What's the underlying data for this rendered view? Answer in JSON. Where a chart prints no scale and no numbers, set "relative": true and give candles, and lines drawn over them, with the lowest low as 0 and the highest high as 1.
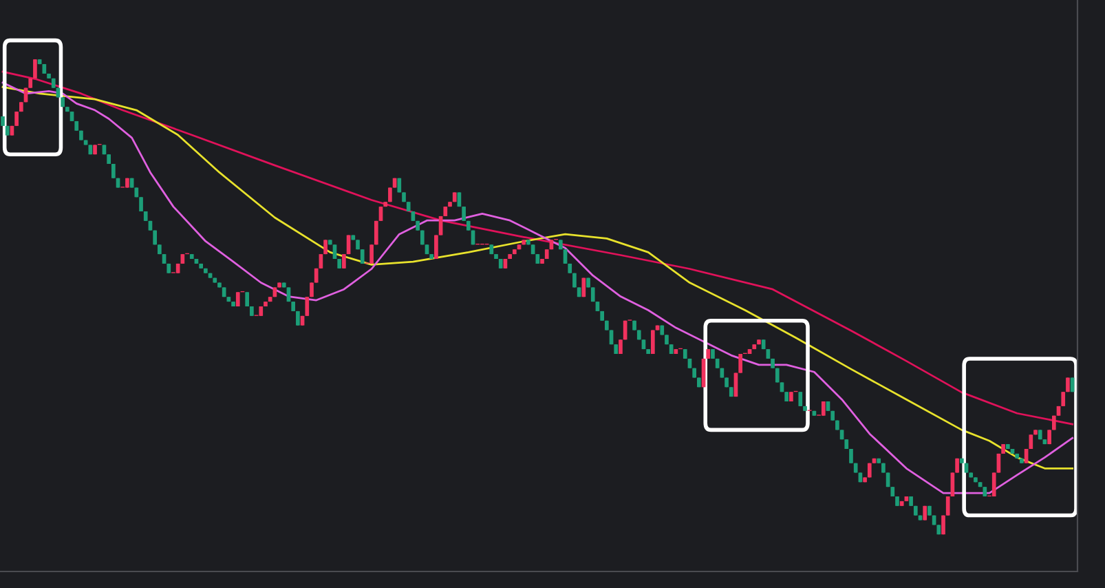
{
  "chart_data": {
    "type": "candlestick",
    "relative": true,
    "categories": [
      null,
      null,
      null,
      null,
      null,
      null,
      null,
      null,
      null,
      null,
      null,
      null,
      null,
      null,
      null,
      null,
      null,
      null,
      null,
      null,
      null,
      null,
      null,
      null,
      null,
      null,
      null,
      null,
      null,
      null,
      null,
      null,
      null,
      null,
      null,
      null,
      null,
      null,
      null,
      null,
      null,
      null,
      null,
      null,
      null,
      null,
      null,
      null,
      null,
      null,
      null,
      null,
      null,
      null,
      null,
      null,
      null,
      null,
      null,
      null,
      null,
      null,
      null,
      null,
      null,
      null,
      null,
      null,
      null,
      null,
      null,
      null,
      null,
      null,
      null,
      null,
      null,
      null,
      null,
      null,
      null,
      null,
      null,
      null,
      null,
      null,
      null,
      null,
      null,
      null,
      null,
      null,
      null,
      null,
      null,
      null,
      null,
      null,
      null,
      null,
      null,
      null,
      null,
      null,
      null,
      null,
      null,
      null,
      null,
      null,
      null,
      null,
      null,
      null,
      null,
      null,
      null,
      null,
      null,
      null,
      null,
      null,
      null,
      null,
      null,
      null,
      null,
      null,
      null,
      null,
      null,
      null,
      null,
      null,
      null,
      null,
      null,
      null,
      null,
      null,
      null,
      null,
      null,
      null,
      null,
      null,
      null,
      null,
      null,
      null,
      null,
      null,
      null,
      null,
      null,
      null,
      null,
      null,
      null,
      null,
      null,
      null,
      null,
      null,
      null,
      null,
      null,
      null,
      null,
      null,
      null,
      null,
      null,
      null,
      null,
      null,
      null,
      null,
      null,
      null,
      null,
      null,
      null,
      null,
      null,
      null,
      null,
      null,
      null,
      null,
      null,
      null,
      null,
      null,
      null,
      null,
      null,
      null,
      null,
      null,
      null,
      null,
      null,
      null,
      null,
      null,
      null,
      null,
      null,
      null,
      null,
      null,
      null,
      null,
      null,
      null,
      null,
      null,
      null,
      null,
      null,
      null,
      null,
      null,
      null,
      null,
      null,
      null,
      null,
      null,
      null,
      null,
      null
    ],
    "colors": [
      "#1c9e78",
      "#1c9e78",
      "#f0325e",
      "#f0325e",
      "#f0325e",
      "#f0325e",
      "#f0325e",
      "#f0325e",
      "#1c9e78",
      "#1c9e78",
      "#1c9e78",
      "#1c9e78",
      "#1c9e78",
      "#1c9e78",
      "#1c9e78",
      "#1c9e78",
      "#1c9e78",
      "#1c9e78",
      "#1c9e78",
      "#1c9e78",
      "#f0325e",
      "#f0325e",
      "#1c9e78",
      "#1c9e78",
      "#1c9e78",
      "#1c9e78",
      "#f0325e",
      "#f0325e",
      "#1c9e78",
      "#1c9e78",
      "#1c9e78",
      "#1c9e78",
      "#1c9e78",
      "#1c9e78",
      "#1c9e78",
      "#1c9e78",
      "#1c9e78",
      "#f0325e",
      "#f0325e",
      "#f0325e",
      "#f0325e",
      "#1c9e78",
      "#1c9e78",
      "#1c9e78",
      "#1c9e78",
      "#1c9e78",
      "#1c9e78",
      "#1c9e78",
      "#1c9e78",
      "#1c9e78",
      "#1c9e78",
      "#f0325e",
      "#f0325e",
      "#1c9e78",
      "#1c9e78",
      "#f0325e",
      "#f0325e",
      "#f0325e",
      "#f0325e",
      "#f0325e",
      "#f0325e",
      "#1c9e78",
      "#1c9e78",
      "#1c9e78",
      "#1c9e78",
      "#f0325e",
      "#f0325e",
      "#f0325e",
      "#f0325e",
      "#f0325e",
      "#f0325e",
      "#1c9e78",
      "#1c9e78",
      "#1c9e78",
      "#f0325e",
      "#f0325e",
      "#1c9e78",
      "#1c9e78",
      "#1c9e78",
      "#f0325e",
      "#f0325e",
      "#f0325e",
      "#f0325e",
      "#f0325e",
      "#f0325e",
      "#f0325e",
      "#1c9e78",
      "#1c9e78",
      "#1c9e78",
      "#1c9e78",
      "#1c9e78",
      "#1c9e78",
      "#1c9e78",
      "#1c9e78",
      "#f0325e",
      "#f0325e",
      "#f0325e",
      "#f0325e",
      "#f0325e",
      "#1c9e78",
      "#1c9e78",
      "#1c9e78",
      "#1c9e78",
      "#f0325e",
      "#f0325e",
      "#f0325e",
      "#1c9e78",
      "#1c9e78",
      "#1c9e78",
      "#f0325e",
      "#f0325e",
      "#f0325e",
      "#f0325e",
      "#f0325e",
      "#1c9e78",
      "#1c9e78",
      "#1c9e78",
      "#f0325e",
      "#f0325e",
      "#f0325e",
      "#f0325e",
      "#1c9e78",
      "#1c9e78",
      "#1c9e78",
      "#1c9e78",
      "#1c9e78",
      "#f0325e",
      "#1c9e78",
      "#1c9e78",
      "#1c9e78",
      "#1c9e78",
      "#1c9e78",
      "#1c9e78",
      "#1c9e78",
      "#f0325e",
      "#f0325e",
      "#f0325e",
      "#1c9e78",
      "#1c9e78",
      "#1c9e78",
      "#1c9e78",
      "#f0325e",
      "#f0325e",
      "#1c9e78",
      "#1c9e78",
      "#1c9e78",
      "#f0325e",
      "#f0325e",
      "#1c9e78",
      "#1c9e78",
      "#1c9e78",
      "#1c9e78",
      "#f0325e",
      "#f0325e",
      "#1c9e78",
      "#1c9e78",
      "#1c9e78",
      "#1c9e78",
      "#1c9e78",
      "#f0325e",
      "#f0325e",
      "#f0325e",
      "#f0325e",
      "#f0325e",
      "#f0325e",
      "#1c9e78",
      "#1c9e78",
      "#1c9e78",
      "#1c9e78",
      "#1c9e78",
      "#1c9e78",
      "#f0325e",
      "#f0325e",
      "#1c9e78",
      "#1c9e78",
      "#f0325e",
      "#1c9e78",
      "#f0325e",
      "#f0325e",
      "#1c9e78",
      "#1c9e78",
      "#1c9e78",
      "#1c9e78",
      "#1c9e78",
      "#1c9e78",
      "#1c9e78",
      "#1c9e78",
      "#f0325e",
      "#f0325e",
      "#f0325e",
      "#1c9e78",
      "#1c9e78",
      "#1c9e78",
      "#1c9e78",
      "#1c9e78",
      "#f0325e",
      "#f0325e",
      "#1c9e78",
      "#1c9e78",
      "#1c9e78",
      "#f0325e",
      "#1c9e78",
      "#1c9e78",
      "#1c9e78",
      "#f0325e",
      "#f0325e",
      "#f0325e",
      "#f0325e",
      "#1c9e78",
      "#1c9e78",
      "#1c9e78",
      "#1c9e78",
      "#1c9e78",
      "#1c9e78",
      "#f0325e",
      "#f0325e",
      "#f0325e",
      "#f0325e",
      "#1c9e78",
      "#1c9e78",
      "#1c9e78",
      "#1c9e78",
      "#f0325e",
      "#f0325e",
      "#f0325e",
      "#1c9e78",
      "#1c9e78",
      "#f0325e",
      "#f0325e",
      "#f0325e",
      "#f0325e",
      "#f0325e",
      "#1c9e78"
    ],
    "ohlc": [
      [
        0.88,
        0.88,
        0.86,
        0.86
      ],
      [
        0.86,
        0.86,
        0.84,
        0.84
      ],
      [
        0.84,
        0.86,
        0.84,
        0.86
      ],
      [
        0.86,
        0.89,
        0.86,
        0.89
      ],
      [
        0.89,
        0.91,
        0.89,
        0.91
      ],
      [
        0.91,
        0.94,
        0.91,
        0.94
      ],
      [
        0.94,
        0.96,
        0.94,
        0.96
      ],
      [
        0.96,
        1,
        0.96,
        1
      ],
      [
        1,
        1,
        0.99,
        0.99
      ],
      [
        0.99,
        0.99,
        0.97,
        0.97
      ],
      [
        0.97,
        0.97,
        0.96,
        0.96
      ],
      [
        0.96,
        0.96,
        0.94,
        0.94
      ],
      [
        0.94,
        0.94,
        0.92,
        0.92
      ],
      [
        0.92,
        0.92,
        0.9,
        0.9
      ],
      [
        0.9,
        0.9,
        0.89,
        0.89
      ],
      [
        0.89,
        0.89,
        0.87,
        0.87
      ],
      [
        0.87,
        0.87,
        0.85,
        0.85
      ],
      [
        0.85,
        0.85,
        0.83,
        0.83
      ],
      [
        0.83,
        0.83,
        0.82,
        0.82
      ],
      [
        0.82,
        0.82,
        0.8,
        0.8
      ],
      [
        0.8,
        0.82,
        0.8,
        0.82
      ],
      [
        0.82,
        0.82,
        0.82,
        0.82
      ],
      [
        0.82,
        0.82,
        0.8,
        0.8
      ],
      [
        0.8,
        0.8,
        0.78,
        0.78
      ],
      [
        0.78,
        0.78,
        0.75,
        0.75
      ],
      [
        0.75,
        0.75,
        0.73,
        0.73
      ],
      [
        0.73,
        0.73,
        0.73,
        0.73
      ],
      [
        0.73,
        0.75,
        0.73,
        0.75
      ],
      [
        0.75,
        0.75,
        0.73,
        0.73
      ],
      [
        0.73,
        0.73,
        0.71,
        0.71
      ],
      [
        0.71,
        0.71,
        0.68,
        0.68
      ],
      [
        0.68,
        0.68,
        0.66,
        0.66
      ],
      [
        0.66,
        0.66,
        0.64,
        0.64
      ],
      [
        0.64,
        0.64,
        0.61,
        0.61
      ],
      [
        0.61,
        0.61,
        0.59,
        0.59
      ],
      [
        0.59,
        0.59,
        0.57,
        0.57
      ],
      [
        0.57,
        0.57,
        0.55,
        0.55
      ],
      [
        0.55,
        0.55,
        0.55,
        0.55
      ],
      [
        0.55,
        0.57,
        0.55,
        0.57
      ],
      [
        0.57,
        0.59,
        0.57,
        0.59
      ],
      [
        0.59,
        0.59,
        0.59,
        0.59
      ],
      [
        0.59,
        0.59,
        0.58,
        0.58
      ],
      [
        0.58,
        0.58,
        0.57,
        0.57
      ],
      [
        0.57,
        0.57,
        0.56,
        0.56
      ],
      [
        0.56,
        0.56,
        0.55,
        0.55
      ],
      [
        0.55,
        0.55,
        0.54,
        0.54
      ],
      [
        0.54,
        0.54,
        0.53,
        0.53
      ],
      [
        0.53,
        0.53,
        0.52,
        0.52
      ],
      [
        0.52,
        0.52,
        0.5,
        0.5
      ],
      [
        0.5,
        0.5,
        0.49,
        0.49
      ],
      [
        0.49,
        0.49,
        0.48,
        0.48
      ],
      [
        0.48,
        0.51,
        0.48,
        0.51
      ],
      [
        0.51,
        0.51,
        0.51,
        0.51
      ],
      [
        0.51,
        0.51,
        0.48,
        0.48
      ],
      [
        0.48,
        0.48,
        0.46,
        0.46
      ],
      [
        0.46,
        0.46,
        0.46,
        0.46
      ],
      [
        0.46,
        0.48,
        0.46,
        0.48
      ],
      [
        0.48,
        0.49,
        0.48,
        0.49
      ],
      [
        0.49,
        0.5,
        0.49,
        0.5
      ],
      [
        0.5,
        0.52,
        0.5,
        0.52
      ],
      [
        0.52,
        0.53,
        0.52,
        0.53
      ],
      [
        0.53,
        0.53,
        0.52,
        0.52
      ],
      [
        0.52,
        0.52,
        0.49,
        0.49
      ],
      [
        0.49,
        0.49,
        0.47,
        0.47
      ],
      [
        0.47,
        0.47,
        0.44,
        0.44
      ],
      [
        0.44,
        0.46,
        0.44,
        0.46
      ],
      [
        0.46,
        0.5,
        0.46,
        0.5
      ],
      [
        0.5,
        0.53,
        0.5,
        0.53
      ],
      [
        0.53,
        0.56,
        0.53,
        0.56
      ],
      [
        0.56,
        0.59,
        0.56,
        0.59
      ],
      [
        0.59,
        0.62,
        0.59,
        0.62
      ],
      [
        0.62,
        0.62,
        0.61,
        0.61
      ],
      [
        0.61,
        0.61,
        0.58,
        0.58
      ],
      [
        0.58,
        0.58,
        0.56,
        0.56
      ],
      [
        0.56,
        0.59,
        0.56,
        0.59
      ],
      [
        0.59,
        0.63,
        0.59,
        0.63
      ],
      [
        0.63,
        0.63,
        0.62,
        0.62
      ],
      [
        0.62,
        0.62,
        0.6,
        0.6
      ],
      [
        0.6,
        0.6,
        0.57,
        0.57
      ],
      [
        0.57,
        0.57,
        0.57,
        0.57
      ],
      [
        0.57,
        0.61,
        0.57,
        0.61
      ],
      [
        0.61,
        0.66,
        0.61,
        0.66
      ],
      [
        0.66,
        0.69,
        0.66,
        0.69
      ],
      [
        0.69,
        0.7,
        0.69,
        0.7
      ],
      [
        0.7,
        0.73,
        0.7,
        0.73
      ],
      [
        0.73,
        0.75,
        0.73,
        0.75
      ],
      [
        0.75,
        0.75,
        0.72,
        0.72
      ],
      [
        0.72,
        0.72,
        0.7,
        0.7
      ],
      [
        0.7,
        0.7,
        0.68,
        0.68
      ],
      [
        0.68,
        0.68,
        0.66,
        0.66
      ],
      [
        0.66,
        0.66,
        0.64,
        0.64
      ],
      [
        0.64,
        0.64,
        0.61,
        0.61
      ],
      [
        0.61,
        0.61,
        0.59,
        0.59
      ],
      [
        0.59,
        0.59,
        0.58,
        0.58
      ],
      [
        0.58,
        0.63,
        0.58,
        0.63
      ],
      [
        0.63,
        0.67,
        0.63,
        0.67
      ],
      [
        0.67,
        0.69,
        0.67,
        0.69
      ],
      [
        0.69,
        0.7,
        0.69,
        0.7
      ],
      [
        0.7,
        0.72,
        0.7,
        0.72
      ],
      [
        0.72,
        0.72,
        0.69,
        0.69
      ],
      [
        0.69,
        0.69,
        0.66,
        0.66
      ],
      [
        0.66,
        0.66,
        0.64,
        0.64
      ],
      [
        0.64,
        0.64,
        0.61,
        0.61
      ],
      [
        0.61,
        0.61,
        0.61,
        0.61
      ],
      [
        0.61,
        0.61,
        0.61,
        0.61
      ],
      [
        0.61,
        0.61,
        0.61,
        0.61
      ],
      [
        0.61,
        0.61,
        0.59,
        0.59
      ],
      [
        0.59,
        0.59,
        0.58,
        0.58
      ],
      [
        0.58,
        0.58,
        0.56,
        0.56
      ],
      [
        0.56,
        0.58,
        0.56,
        0.58
      ],
      [
        0.58,
        0.59,
        0.58,
        0.59
      ],
      [
        0.59,
        0.6,
        0.59,
        0.6
      ],
      [
        0.6,
        0.61,
        0.6,
        0.61
      ],
      [
        0.61,
        0.62,
        0.61,
        0.62
      ],
      [
        0.62,
        0.62,
        0.61,
        0.61
      ],
      [
        0.61,
        0.61,
        0.59,
        0.59
      ],
      [
        0.59,
        0.59,
        0.57,
        0.57
      ],
      [
        0.57,
        0.58,
        0.57,
        0.58
      ],
      [
        0.58,
        0.6,
        0.58,
        0.6
      ],
      [
        0.6,
        0.62,
        0.6,
        0.62
      ],
      [
        0.62,
        0.62,
        0.62,
        0.62
      ],
      [
        0.62,
        0.62,
        0.6,
        0.6
      ],
      [
        0.6,
        0.6,
        0.57,
        0.57
      ],
      [
        0.57,
        0.57,
        0.55,
        0.55
      ],
      [
        0.55,
        0.55,
        0.52,
        0.52
      ],
      [
        0.52,
        0.52,
        0.5,
        0.5
      ],
      [
        0.5,
        0.54,
        0.5,
        0.54
      ],
      [
        0.54,
        0.54,
        0.52,
        0.52
      ],
      [
        0.52,
        0.52,
        0.49,
        0.49
      ],
      [
        0.49,
        0.49,
        0.47,
        0.47
      ],
      [
        0.47,
        0.47,
        0.45,
        0.45
      ],
      [
        0.45,
        0.45,
        0.43,
        0.43
      ],
      [
        0.43,
        0.43,
        0.4,
        0.4
      ],
      [
        0.4,
        0.4,
        0.38,
        0.38
      ],
      [
        0.38,
        0.41,
        0.38,
        0.41
      ],
      [
        0.41,
        0.45,
        0.41,
        0.45
      ],
      [
        0.45,
        0.45,
        0.45,
        0.45
      ],
      [
        0.45,
        0.45,
        0.43,
        0.43
      ],
      [
        0.43,
        0.43,
        0.41,
        0.41
      ],
      [
        0.41,
        0.41,
        0.39,
        0.39
      ],
      [
        0.39,
        0.39,
        0.38,
        0.38
      ],
      [
        0.38,
        0.43,
        0.38,
        0.43
      ],
      [
        0.43,
        0.44,
        0.43,
        0.44
      ],
      [
        0.44,
        0.44,
        0.42,
        0.42
      ],
      [
        0.42,
        0.42,
        0.4,
        0.4
      ],
      [
        0.4,
        0.4,
        0.38,
        0.38
      ],
      [
        0.38,
        0.39,
        0.38,
        0.39
      ],
      [
        0.39,
        0.39,
        0.39,
        0.39
      ],
      [
        0.39,
        0.39,
        0.37,
        0.37
      ],
      [
        0.37,
        0.37,
        0.35,
        0.35
      ],
      [
        0.35,
        0.35,
        0.33,
        0.33
      ],
      [
        0.33,
        0.33,
        0.31,
        0.31
      ],
      [
        0.31,
        0.37,
        0.31,
        0.37
      ],
      [
        0.37,
        0.39,
        0.37,
        0.39
      ],
      [
        0.39,
        0.39,
        0.37,
        0.37
      ],
      [
        0.37,
        0.37,
        0.35,
        0.35
      ],
      [
        0.35,
        0.35,
        0.33,
        0.33
      ],
      [
        0.33,
        0.33,
        0.31,
        0.31
      ],
      [
        0.31,
        0.31,
        0.29,
        0.29
      ],
      [
        0.29,
        0.34,
        0.29,
        0.34
      ],
      [
        0.34,
        0.38,
        0.34,
        0.38
      ],
      [
        0.38,
        0.38,
        0.38,
        0.38
      ],
      [
        0.38,
        0.39,
        0.38,
        0.39
      ],
      [
        0.39,
        0.4,
        0.39,
        0.4
      ],
      [
        0.4,
        0.41,
        0.4,
        0.41
      ],
      [
        0.41,
        0.41,
        0.39,
        0.39
      ],
      [
        0.39,
        0.39,
        0.37,
        0.37
      ],
      [
        0.37,
        0.37,
        0.35,
        0.35
      ],
      [
        0.35,
        0.35,
        0.32,
        0.32
      ],
      [
        0.32,
        0.32,
        0.3,
        0.3
      ],
      [
        0.3,
        0.3,
        0.28,
        0.28
      ],
      [
        0.28,
        0.3,
        0.28,
        0.3
      ],
      [
        0.3,
        0.3,
        0.3,
        0.3
      ],
      [
        0.3,
        0.3,
        0.27,
        0.27
      ],
      [
        0.27,
        0.27,
        0.26,
        0.26
      ],
      [
        0.26,
        0.26,
        0.26,
        0.26
      ],
      [
        0.26,
        0.26,
        0.25,
        0.25
      ],
      [
        0.25,
        0.25,
        0.25,
        0.25
      ],
      [
        0.25,
        0.28,
        0.25,
        0.28
      ],
      [
        0.28,
        0.28,
        0.26,
        0.26
      ],
      [
        0.26,
        0.26,
        0.24,
        0.24
      ],
      [
        0.24,
        0.24,
        0.22,
        0.22
      ],
      [
        0.22,
        0.22,
        0.2,
        0.2
      ],
      [
        0.2,
        0.2,
        0.18,
        0.18
      ],
      [
        0.18,
        0.18,
        0.15,
        0.15
      ],
      [
        0.15,
        0.15,
        0.13,
        0.13
      ],
      [
        0.13,
        0.13,
        0.11,
        0.11
      ],
      [
        0.11,
        0.12,
        0.11,
        0.12
      ],
      [
        0.12,
        0.15,
        0.12,
        0.15
      ],
      [
        0.15,
        0.16,
        0.15,
        0.16
      ],
      [
        0.16,
        0.16,
        0.15,
        0.15
      ],
      [
        0.15,
        0.15,
        0.13,
        0.13
      ],
      [
        0.13,
        0.13,
        0.1,
        0.1
      ],
      [
        0.1,
        0.1,
        0.08,
        0.08
      ],
      [
        0.08,
        0.08,
        0.06,
        0.06
      ],
      [
        0.06,
        0.07,
        0.06,
        0.07
      ],
      [
        0.07,
        0.08,
        0.07,
        0.08
      ],
      [
        0.08,
        0.08,
        0.06,
        0.06
      ],
      [
        0.06,
        0.06,
        0.04,
        0.04
      ],
      [
        0.04,
        0.04,
        0.03,
        0.03
      ],
      [
        0.03,
        0.06,
        0.03,
        0.06
      ],
      [
        0.06,
        0.06,
        0.04,
        0.04
      ],
      [
        0.04,
        0.04,
        0.02,
        0.02
      ],
      [
        0.02,
        0.02,
        0,
        0
      ],
      [
        0,
        0.04,
        0,
        0.04
      ],
      [
        0.04,
        0.08,
        0.04,
        0.08
      ],
      [
        0.08,
        0.13,
        0.08,
        0.13
      ],
      [
        0.13,
        0.16,
        0.13,
        0.16
      ],
      [
        0.16,
        0.16,
        0.15,
        0.15
      ],
      [
        0.15,
        0.15,
        0.13,
        0.13
      ],
      [
        0.13,
        0.13,
        0.12,
        0.12
      ],
      [
        0.12,
        0.12,
        0.11,
        0.11
      ],
      [
        0.11,
        0.11,
        0.1,
        0.1
      ],
      [
        0.1,
        0.1,
        0.08,
        0.08
      ],
      [
        0.08,
        0.08,
        0.08,
        0.08
      ],
      [
        0.08,
        0.13,
        0.08,
        0.13
      ],
      [
        0.13,
        0.17,
        0.13,
        0.17
      ],
      [
        0.17,
        0.19,
        0.17,
        0.19
      ],
      [
        0.19,
        0.19,
        0.18,
        0.18
      ],
      [
        0.18,
        0.18,
        0.17,
        0.17
      ],
      [
        0.17,
        0.17,
        0.16,
        0.16
      ],
      [
        0.16,
        0.16,
        0.15,
        0.15
      ],
      [
        0.15,
        0.18,
        0.15,
        0.18
      ],
      [
        0.18,
        0.21,
        0.18,
        0.21
      ],
      [
        0.21,
        0.22,
        0.21,
        0.22
      ],
      [
        0.22,
        0.22,
        0.2,
        0.2
      ],
      [
        0.2,
        0.2,
        0.19,
        0.19
      ],
      [
        0.19,
        0.22,
        0.19,
        0.22
      ],
      [
        0.22,
        0.25,
        0.22,
        0.25
      ],
      [
        0.25,
        0.27,
        0.25,
        0.27
      ],
      [
        0.27,
        0.3,
        0.27,
        0.3
      ],
      [
        0.3,
        0.33,
        0.3,
        0.33
      ],
      [
        0.33,
        0.33,
        0.3,
        0.3
      ]
    ],
    "series": [
      {
        "type": "line",
        "color": "#e0125a",
        "values": [
          0.974,
          null,
          null,
          null,
          null,
          null,
          null,
          0.959,
          null,
          null,
          null,
          null,
          null,
          null,
          null,
          null,
          null,
          0.928,
          null,
          null,
          null,
          null,
          null,
          null,
          null,
          null,
          0.893,
          null,
          null,
          null,
          null,
          null,
          null,
          null,
          null,
          null,
          null,
          null,
          null,
          null,
          null,
          0.841,
          null,
          null,
          null,
          null,
          null,
          null,
          null,
          null,
          null,
          null,
          null,
          null,
          null,
          null,
          null,
          null,
          null,
          0.777,
          null,
          null,
          null,
          null,
          null,
          null,
          null,
          null,
          null,
          null,
          null,
          null,
          null,
          null,
          null,
          null,
          null,
          null,
          null,
          null,
          0.704,
          null,
          null,
          null,
          null,
          null,
          null,
          null,
          null,
          null,
          null,
          null,
          null,
          null,
          null,
          0.661,
          null,
          null,
          null,
          null,
          null,
          null,
          null,
          null,
          null,
          null,
          null,
          null,
          null,
          null,
          null,
          null,
          null,
          0.626,
          null,
          null,
          null,
          null,
          null,
          null,
          null,
          null,
          null,
          null,
          null,
          null,
          null,
          null,
          null,
          null,
          null,
          null,
          null,
          null,
          0.588,
          null,
          null,
          null,
          null,
          null,
          null,
          null,
          null,
          null,
          null,
          null,
          null,
          null,
          null,
          0.559,
          null,
          null,
          null,
          null,
          null,
          null,
          null,
          null,
          null,
          null,
          null,
          null,
          null,
          null,
          null,
          null,
          null,
          0.516,
          null,
          null,
          null,
          null,
          null,
          null,
          null,
          null,
          null,
          null,
          null,
          null,
          null,
          null,
          null,
          null,
          0.429,
          null,
          null,
          null,
          null,
          null,
          null,
          null,
          null,
          null,
          null,
          null,
          0.365,
          null,
          null,
          null,
          null,
          null,
          null,
          null,
          null,
          null,
          null,
          null,
          0.299,
          null,
          null,
          null,
          null,
          null,
          null,
          null,
          null,
          null,
          null,
          null,
          0.255,
          null,
          null,
          null,
          null,
          null,
          null,
          null,
          null,
          null,
          null,
          null,
          0.232
        ]
      },
      {
        "type": "line",
        "color": "#e8e22c",
        "values": [
          0.942,
          null,
          null,
          null,
          null,
          null,
          null,
          null,
          0.928,
          null,
          null,
          null,
          null,
          null,
          null,
          null,
          null,
          null,
          null,
          null,
          0.916,
          null,
          null,
          null,
          null,
          null,
          null,
          null,
          null,
          0.893,
          null,
          null,
          null,
          null,
          null,
          null,
          null,
          null,
          0.841,
          null,
          null,
          null,
          null,
          null,
          null,
          null,
          null,
          0.762,
          null,
          null,
          null,
          null,
          null,
          null,
          null,
          null,
          null,
          null,
          null,
          0.667,
          null,
          null,
          null,
          null,
          null,
          null,
          null,
          null,
          null,
          null,
          null,
          0.594,
          null,
          null,
          null,
          null,
          null,
          null,
          null,
          null,
          0.568,
          null,
          null,
          null,
          null,
          null,
          null,
          null,
          null,
          0.574,
          null,
          null,
          null,
          null,
          null,
          null,
          null,
          null,
          null,
          null,
          null,
          0.594,
          null,
          null,
          null,
          null,
          null,
          null,
          null,
          null,
          null,
          null,
          null,
          0.617,
          null,
          null,
          null,
          null,
          null,
          null,
          null,
          null,
          0.632,
          null,
          null,
          null,
          null,
          null,
          null,
          null,
          null,
          0.623,
          null,
          null,
          null,
          null,
          null,
          null,
          null,
          null,
          0.594,
          null,
          null,
          null,
          null,
          null,
          null,
          null,
          null,
          0.53,
          null,
          null,
          null,
          null,
          null,
          null,
          null,
          null,
          null,
          null,
          null,
          0.472,
          null,
          null,
          null,
          null,
          null,
          null,
          null,
          null,
          null,
          null,
          0.414,
          null,
          null,
          null,
          null,
          null,
          null,
          null,
          null,
          null,
          null,
          null,
          0.348,
          null,
          null,
          null,
          null,
          null,
          null,
          null,
          null,
          null,
          null,
          null,
          0.284,
          null,
          null,
          null,
          null,
          null,
          null,
          null,
          null,
          null,
          null,
          null,
          0.22,
          null,
          null,
          null,
          null,
          null,
          0.197,
          null,
          null,
          null,
          null,
          null,
          0.162,
          null,
          null,
          null,
          null,
          null,
          0.139,
          null,
          null,
          null,
          null,
          null,
          0.139
        ]
      },
      {
        "type": "line",
        "color": "#e060e0",
        "values": [
          0.951,
          null,
          null,
          null,
          null,
          0.928,
          null,
          null,
          null,
          null,
          0.933,
          null,
          null,
          0.928,
          null,
          null,
          0.907,
          null,
          null,
          null,
          0.893,
          null,
          null,
          0.875,
          null,
          null,
          null,
          null,
          0.835,
          null,
          null,
          null,
          0.762,
          null,
          null,
          null,
          null,
          0.69,
          null,
          null,
          null,
          null,
          null,
          null,
          0.617,
          null,
          null,
          null,
          null,
          null,
          0.574,
          null,
          null,
          null,
          null,
          null,
          0.53,
          null,
          null,
          null,
          null,
          null,
          0.501,
          null,
          null,
          null,
          null,
          null,
          0.493,
          null,
          null,
          null,
          null,
          null,
          0.516,
          null,
          null,
          null,
          null,
          null,
          0.559,
          null,
          null,
          null,
          null,
          null,
          0.632,
          null,
          null,
          null,
          null,
          null,
          0.661,
          null,
          null,
          null,
          null,
          null,
          0.661,
          null,
          null,
          null,
          null,
          null,
          0.675,
          null,
          null,
          null,
          null,
          null,
          0.661,
          null,
          null,
          null,
          null,
          null,
          0.632,
          null,
          null,
          null,
          null,
          null,
          0.603,
          null,
          null,
          null,
          null,
          null,
          0.545,
          null,
          null,
          null,
          null,
          null,
          0.501,
          null,
          null,
          null,
          null,
          null,
          0.472,
          null,
          null,
          null,
          null,
          null,
          0.435,
          null,
          null,
          null,
          null,
          null,
          0.406,
          null,
          null,
          null,
          null,
          null,
          0.377,
          null,
          null,
          null,
          null,
          null,
          0.357,
          null,
          null,
          null,
          null,
          null,
          0.357,
          null,
          null,
          null,
          null,
          null,
          0.342,
          null,
          null,
          null,
          null,
          null,
          0.284,
          null,
          null,
          null,
          null,
          null,
          0.212,
          null,
          null,
          null,
          null,
          null,
          null,
          null,
          0.139,
          null,
          null,
          null,
          null,
          null,
          null,
          null,
          0.087,
          null,
          null,
          null,
          null,
          null,
          null,
          null,
          null,
          null,
          0.087,
          null,
          null,
          null,
          null,
          null,
          0.125,
          null,
          null,
          null,
          null,
          null,
          0.162,
          null,
          null,
          null,
          null,
          null,
          0.203
        ]
      }
    ]
  }
}
